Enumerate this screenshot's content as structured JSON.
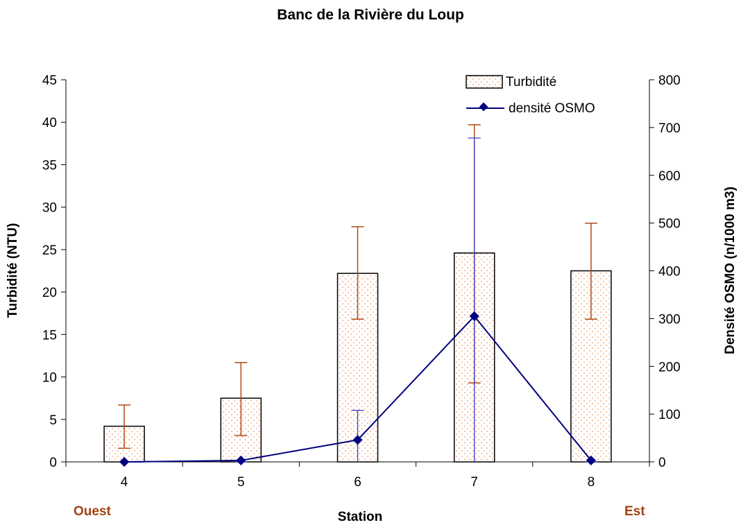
{
  "chart_data": {
    "type": "bar",
    "title": "Banc de la Rivière du Loup",
    "xlabel": "Station",
    "ylabel_left": "Turbidité (NTU)",
    "ylabel_right": "Densité OSMO (n/1000 m3)",
    "categories": [
      "4",
      "5",
      "6",
      "7",
      "8"
    ],
    "ylim_left": [
      0,
      45
    ],
    "ylim_right": [
      0,
      800
    ],
    "yticks_left": [
      "0",
      "5",
      "10",
      "15",
      "20",
      "25",
      "30",
      "35",
      "40",
      "45"
    ],
    "yticks_right": [
      "0",
      "100",
      "200",
      "300",
      "400",
      "500",
      "600",
      "700",
      "800"
    ],
    "grid": false,
    "legend_position": "top-right",
    "direction_labels": {
      "left": "Ouest",
      "right": "Est"
    },
    "colors": {
      "bar_dots": "#f08040",
      "bar_error": "#b04a10",
      "line": "#000080",
      "direction_label": "#a0420f"
    },
    "series": [
      {
        "name": "Turbidité",
        "kind": "bar",
        "axis": "left",
        "values": [
          4.2,
          7.5,
          22.2,
          24.6,
          22.5
        ],
        "error_low": [
          1.6,
          3.1,
          16.8,
          9.3,
          16.8
        ],
        "error_high": [
          6.7,
          11.7,
          27.7,
          39.7,
          28.1
        ]
      },
      {
        "name": "densité OSMO",
        "kind": "line",
        "axis": "right",
        "values": [
          0,
          3,
          46,
          305,
          3
        ],
        "error_low": [
          0,
          0,
          0,
          0,
          0
        ],
        "error_high": [
          0,
          0,
          108,
          678,
          0
        ]
      }
    ]
  }
}
